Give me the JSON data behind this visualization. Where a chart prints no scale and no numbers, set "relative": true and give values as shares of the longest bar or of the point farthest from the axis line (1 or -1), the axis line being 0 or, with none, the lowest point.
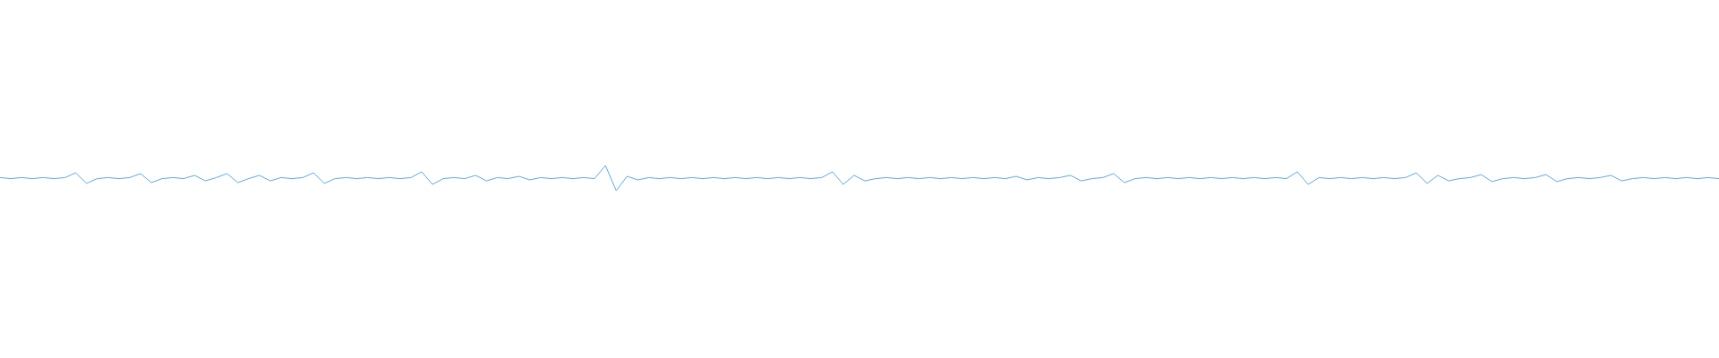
{
  "chart_data": {
    "type": "line",
    "relative": true,
    "color": "#5aaae6",
    "categories": [
      null,
      null,
      null,
      null,
      null,
      null,
      null,
      null,
      null,
      null,
      null,
      null,
      null,
      null,
      null,
      null,
      null,
      null,
      null,
      null,
      null,
      null,
      null,
      null,
      null,
      null,
      null,
      null,
      null,
      null,
      null,
      null,
      null,
      null,
      null,
      null,
      null,
      null,
      null,
      null,
      null,
      null,
      null,
      null,
      null,
      null,
      null,
      null,
      null,
      null,
      null,
      null,
      null,
      null,
      null,
      null,
      null,
      null,
      null,
      null,
      null,
      null,
      null,
      null,
      null,
      null,
      null,
      null,
      null,
      null,
      null,
      null,
      null,
      null,
      null,
      null,
      null,
      null,
      null,
      null,
      null,
      null,
      null,
      null,
      null,
      null,
      null,
      null,
      null,
      null,
      null,
      null,
      null,
      null,
      null,
      null,
      null,
      null,
      null,
      null,
      null,
      null,
      null,
      null,
      null,
      null,
      null,
      null,
      null,
      null,
      null,
      null,
      null,
      null,
      null,
      null,
      null,
      null,
      null,
      null,
      null,
      null,
      null,
      null,
      null,
      null,
      null,
      null,
      null,
      null,
      null,
      null,
      null,
      null,
      null,
      null,
      null,
      null,
      null,
      null,
      null,
      null,
      null,
      null,
      null,
      null,
      null,
      null,
      null,
      null,
      null,
      null,
      null,
      null,
      null,
      null,
      null,
      null,
      null,
      null
    ],
    "values": [
      0.52,
      0.48,
      0.52,
      0.48,
      0.52,
      0.48,
      0.52,
      0.71,
      0.29,
      0.48,
      0.52,
      0.48,
      0.52,
      0.68,
      0.32,
      0.48,
      0.52,
      0.48,
      0.61,
      0.39,
      0.52,
      0.68,
      0.32,
      0.48,
      0.61,
      0.39,
      0.52,
      0.48,
      0.52,
      0.71,
      0.29,
      0.48,
      0.52,
      0.48,
      0.52,
      0.48,
      0.52,
      0.48,
      0.52,
      0.75,
      0.25,
      0.48,
      0.52,
      0.48,
      0.61,
      0.39,
      0.52,
      0.48,
      0.57,
      0.43,
      0.52,
      0.48,
      0.52,
      0.48,
      0.52,
      0.48,
      1,
      0,
      0.57,
      0.43,
      0.52,
      0.48,
      0.52,
      0.48,
      0.52,
      0.48,
      0.52,
      0.48,
      0.52,
      0.48,
      0.52,
      0.48,
      0.52,
      0.48,
      0.52,
      0.48,
      0.52,
      0.75,
      0.25,
      0.61,
      0.39,
      0.48,
      0.52,
      0.48,
      0.52,
      0.48,
      0.52,
      0.48,
      0.52,
      0.48,
      0.52,
      0.48,
      0.52,
      0.48,
      0.57,
      0.43,
      0.52,
      0.48,
      0.52,
      0.61,
      0.39,
      0.48,
      0.52,
      0.68,
      0.32,
      0.48,
      0.52,
      0.48,
      0.52,
      0.48,
      0.52,
      0.48,
      0.52,
      0.48,
      0.52,
      0.48,
      0.52,
      0.48,
      0.52,
      0.48,
      0.75,
      0.25,
      0.52,
      0.48,
      0.52,
      0.48,
      0.52,
      0.48,
      0.52,
      0.48,
      0.52,
      0.71,
      0.29,
      0.61,
      0.39,
      0.48,
      0.52,
      0.64,
      0.36,
      0.48,
      0.52,
      0.48,
      0.52,
      0.64,
      0.36,
      0.48,
      0.52,
      0.48,
      0.52,
      0.61,
      0.39,
      0.48,
      0.52,
      0.48,
      0.52,
      0.48,
      0.52,
      0.48,
      0.52,
      0.48
    ]
  }
}
